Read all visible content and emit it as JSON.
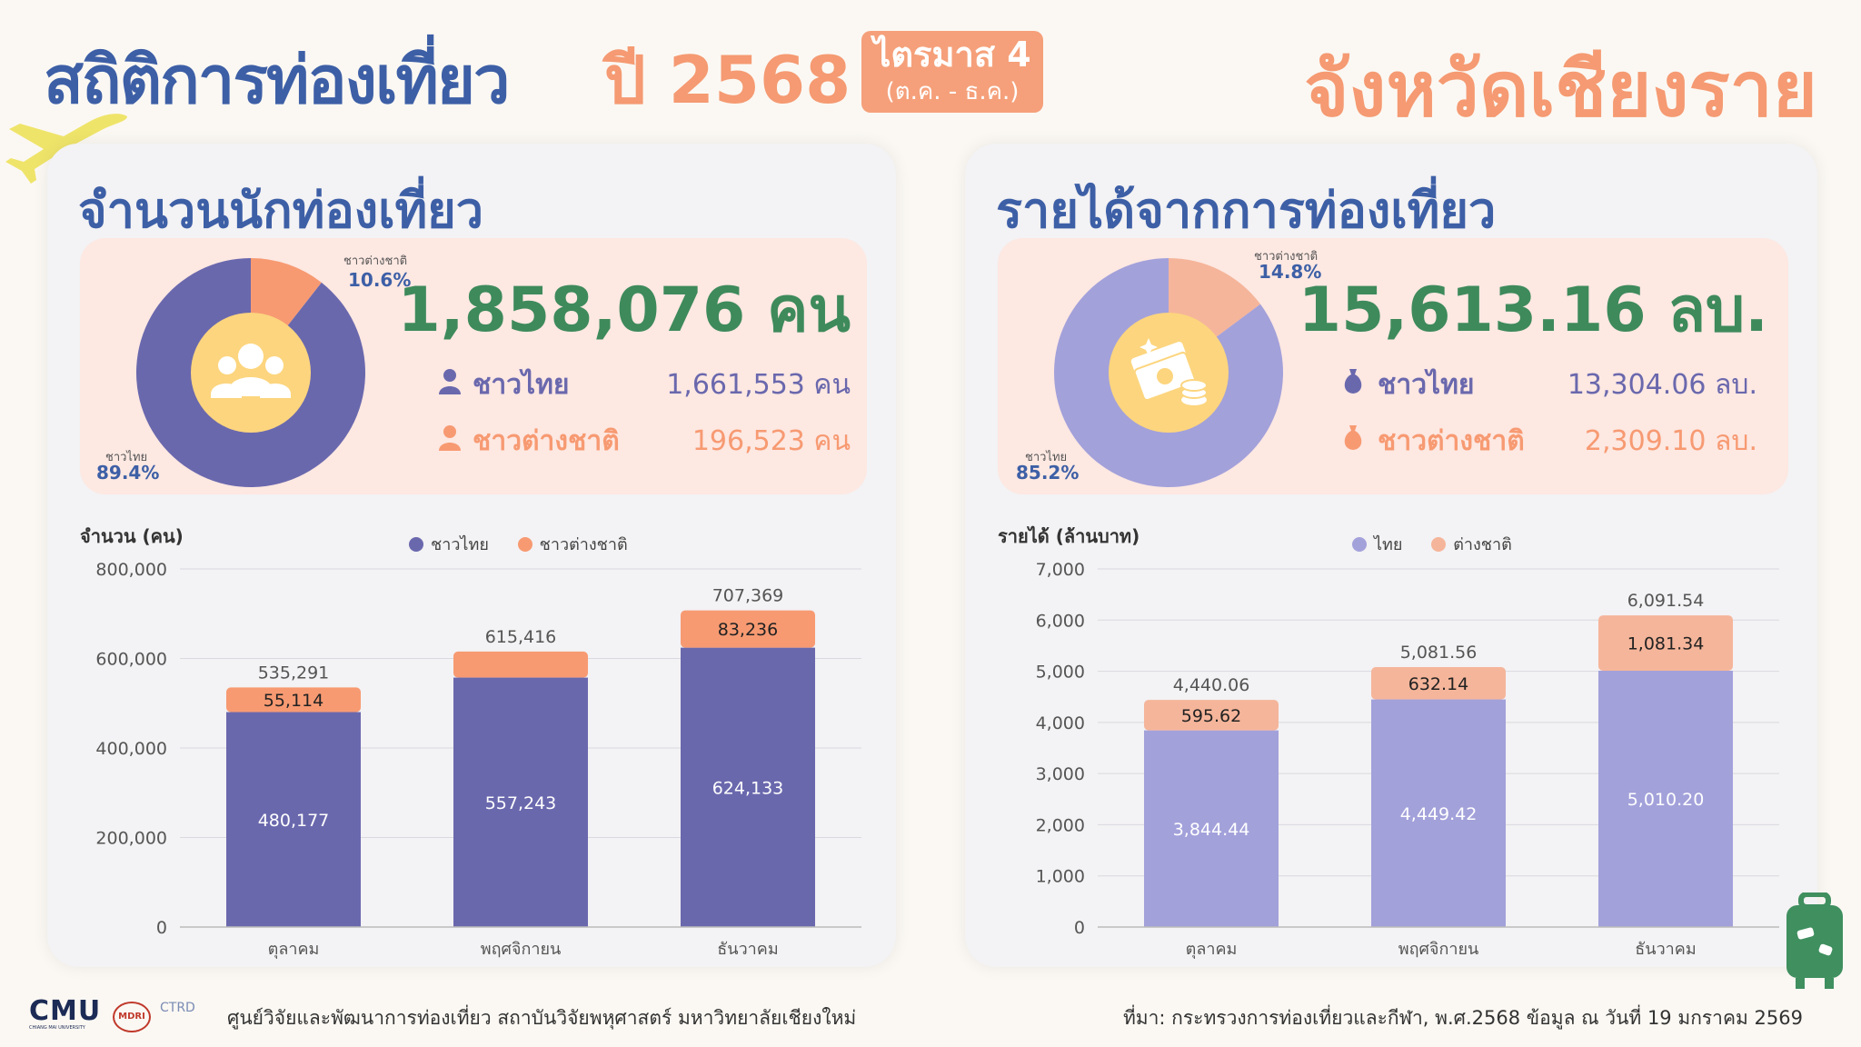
{
  "header": {
    "title": "สถิติการท่องเที่ยว",
    "year": "ปี 2568",
    "quarter": "ไตรมาส 4",
    "quarter_range": "(ต.ค. - ธ.ค.)",
    "province": "จังหวัดเชียงราย"
  },
  "visitors": {
    "title": "จำนวนนักท่องเที่ยว",
    "total": "1,858,076 คน",
    "thai_label": "ชาวไทย",
    "thai_value": "1,661,553 คน",
    "foreign_label": "ชาวต่างชาติ",
    "foreign_value": "196,523 คน",
    "pie_thai_label": "ชาวไทย",
    "pie_thai_pct": "89.4%",
    "pie_foreign_label": "ชาวต่างชาติ",
    "pie_foreign_pct": "10.6%"
  },
  "revenue": {
    "title": "รายได้จากการท่องเที่ยว",
    "total": "15,613.16 ลบ.",
    "thai_label": "ชาวไทย",
    "thai_value": "13,304.06 ลบ.",
    "foreign_label": "ชาวต่างชาติ",
    "foreign_value": "2,309.10 ลบ.",
    "pie_thai_label": "ชาวไทย",
    "pie_thai_pct": "85.2%",
    "pie_foreign_label": "ชาวต่างชาติ",
    "pie_foreign_pct": "14.8%"
  },
  "footer": {
    "logo_cmu": "CMU",
    "logo_cmu_sub": "CHIANG MAI UNIVERSITY",
    "logo_mori": "MDRI",
    "logo_ctrd": "CTRD",
    "institute": "ศูนย์วิจัยและพัฒนาการท่องเที่ยว สถาบันวิจัยพหุศาสตร์ มหาวิทยาลัยเชียงใหม่",
    "source": "ที่มา: กระทรวงการท่องเที่ยวและกีฬา, พ.ศ.2568   ข้อมูล ณ วันที่ 19 มกราคม 2569"
  },
  "colors": {
    "thai_visitors": "#6a68ad",
    "foreign_visitors": "#f79a72",
    "thai_revenue": "#a3a1da",
    "foreign_revenue": "#f5b59a",
    "green": "#3e8a5b",
    "title_blue": "#3d5fa6"
  },
  "icons": [
    "airplane-icon",
    "people-icon",
    "money-icon",
    "person-icon",
    "money-bag-icon",
    "suitcase-icon"
  ],
  "chart_data": [
    {
      "type": "pie",
      "labels": [
        "ชาวไทย",
        "ชาวต่างชาติ"
      ],
      "values": [
        89.4,
        10.6
      ]
    },
    {
      "type": "pie",
      "labels": [
        "ชาวไทย",
        "ชาวต่างชาติ"
      ],
      "values": [
        85.2,
        14.8
      ]
    },
    {
      "type": "bar",
      "stacked": true,
      "ylabel": "จำนวน (คน)",
      "categories": [
        "ตุลาคม",
        "พฤศจิกายน",
        "ธันวาคม"
      ],
      "series": [
        {
          "name": "ชาวไทย",
          "values": [
            480177,
            557243,
            624133
          ],
          "labels": [
            "480,177",
            "557,243",
            "624,133"
          ],
          "color": "#6a68ad"
        },
        {
          "name": "ชาวต่างชาติ",
          "values": [
            55114,
            58173,
            83236
          ],
          "labels": [
            "55,114",
            "",
            "83,236"
          ],
          "color": "#f79a72"
        }
      ],
      "totals": [
        "535,291",
        "615,416",
        "707,369"
      ],
      "ylim": [
        0,
        800000
      ],
      "yticks": [
        0,
        200000,
        400000,
        600000,
        800000
      ],
      "ytick_labels": [
        "0",
        "200,000",
        "400,000",
        "600,000",
        "800,000"
      ],
      "legend": "top-center",
      "grid": true
    },
    {
      "type": "bar",
      "stacked": true,
      "ylabel": "รายได้ (ล้านบาท)",
      "categories": [
        "ตุลาคม",
        "พฤศจิกายน",
        "ธันวาคม"
      ],
      "series": [
        {
          "name": "ไทย",
          "values": [
            3844.44,
            4449.42,
            5010.2
          ],
          "labels": [
            "3,844.44",
            "4,449.42",
            "5,010.20"
          ],
          "color": "#a3a1da"
        },
        {
          "name": "ต่างชาติ",
          "values": [
            595.62,
            632.14,
            1081.34
          ],
          "labels": [
            "595.62",
            "632.14",
            "1,081.34"
          ],
          "color": "#f5b59a"
        }
      ],
      "totals": [
        "4,440.06",
        "5,081.56",
        "6,091.54"
      ],
      "ylim": [
        0,
        7000
      ],
      "yticks": [
        0,
        1000,
        2000,
        3000,
        4000,
        5000,
        6000,
        7000
      ],
      "ytick_labels": [
        "0",
        "1,000",
        "2,000",
        "3,000",
        "4,000",
        "5,000",
        "6,000",
        "7,000"
      ],
      "legend": "top-center",
      "grid": true
    }
  ]
}
